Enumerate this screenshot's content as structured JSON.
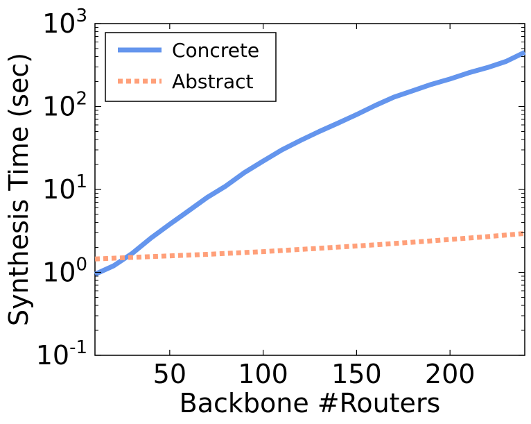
{
  "chart_data": {
    "type": "line",
    "title": "",
    "xlabel": "Backbone #Routers",
    "ylabel": "Synthesis Time (sec)",
    "xlim": [
      10,
      240
    ],
    "ylim": [
      0.1,
      1000
    ],
    "yscale": "log",
    "xticks": [
      50,
      100,
      150,
      200
    ],
    "yticks": [
      {
        "value": 0.1,
        "base": "10",
        "exp": "-1"
      },
      {
        "value": 1,
        "base": "10",
        "exp": "0"
      },
      {
        "value": 10,
        "base": "10",
        "exp": "1"
      },
      {
        "value": 100,
        "base": "10",
        "exp": "2"
      },
      {
        "value": 1000,
        "base": "10",
        "exp": "3"
      }
    ],
    "grid": false,
    "legend_position": "top-left",
    "series": [
      {
        "name": "Concrete",
        "color": "#6495ED",
        "style": "solid",
        "x": [
          10,
          20,
          30,
          40,
          50,
          60,
          70,
          80,
          90,
          100,
          110,
          120,
          130,
          140,
          150,
          160,
          170,
          180,
          190,
          200,
          210,
          220,
          230,
          240
        ],
        "y": [
          0.95,
          1.2,
          1.7,
          2.6,
          3.8,
          5.5,
          8,
          11,
          16,
          22,
          30,
          39,
          50,
          63,
          80,
          103,
          130,
          155,
          185,
          215,
          255,
          295,
          350,
          450
        ]
      },
      {
        "name": "Abstract",
        "color": "#FFA07A",
        "style": "dotted",
        "x": [
          10,
          40,
          70,
          100,
          130,
          160,
          190,
          220,
          240
        ],
        "y": [
          1.45,
          1.55,
          1.65,
          1.78,
          1.95,
          2.15,
          2.4,
          2.7,
          2.95
        ]
      }
    ]
  }
}
